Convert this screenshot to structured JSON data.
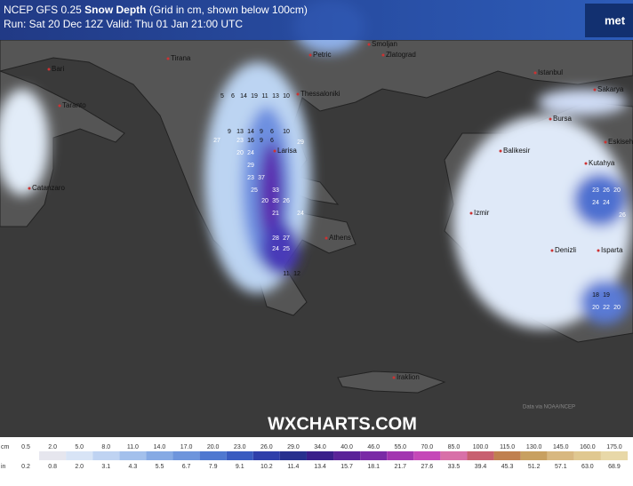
{
  "header": {
    "title_prefix": "NCEP GFS 0.25",
    "title_bold": "Snow Depth",
    "title_suffix": "(Grid in cm, shown below 100cm)",
    "run": "Run: Sat 20 Dec 12Z Valid: Thu 01 Jan 21:00 UTC",
    "logo": "met"
  },
  "map": {
    "cities": [
      "Bari",
      "Taranto",
      "Tirana",
      "Petric",
      "Smoljan",
      "Zlatograd",
      "Istanbul",
      "Sakarya",
      "Thessaloniki",
      "Bursa",
      "Balikesir",
      "Larisa",
      "Kutahya",
      "Eskisehir",
      "Catanzaro",
      "Izmir",
      "Athens",
      "Denizli",
      "Isparta",
      "Iraklion"
    ],
    "grid_values": [
      5,
      6,
      14,
      19,
      11,
      13,
      10,
      9,
      13,
      14,
      9,
      6,
      10,
      27,
      23,
      16,
      9,
      6,
      29,
      20,
      24,
      29,
      23,
      37,
      25,
      33,
      20,
      35,
      26,
      21,
      24,
      28,
      27,
      24,
      25,
      11,
      12,
      23,
      26,
      20,
      24,
      24,
      26,
      18,
      19,
      20,
      22,
      20
    ],
    "watermark": "WXCHARTS.COM",
    "attribution": "Data via NOAA/NCEP"
  },
  "legend": {
    "cm_unit": "cm",
    "cm": [
      "0.5",
      "2.0",
      "5.0",
      "8.0",
      "11.0",
      "14.0",
      "17.0",
      "20.0",
      "23.0",
      "26.0",
      "29.0",
      "34.0",
      "40.0",
      "46.0",
      "55.0",
      "70.0",
      "85.0",
      "100.0",
      "115.0",
      "130.0",
      "145.0",
      "160.0",
      "175.0"
    ],
    "in_unit": "in",
    "in": [
      "0.2",
      "0.8",
      "2.0",
      "3.1",
      "4.3",
      "5.5",
      "6.7",
      "7.9",
      "9.1",
      "10.2",
      "11.4",
      "13.4",
      "15.7",
      "18.1",
      "21.7",
      "27.6",
      "33.5",
      "39.4",
      "45.3",
      "51.2",
      "57.1",
      "63.0",
      "68.9"
    ]
  }
}
